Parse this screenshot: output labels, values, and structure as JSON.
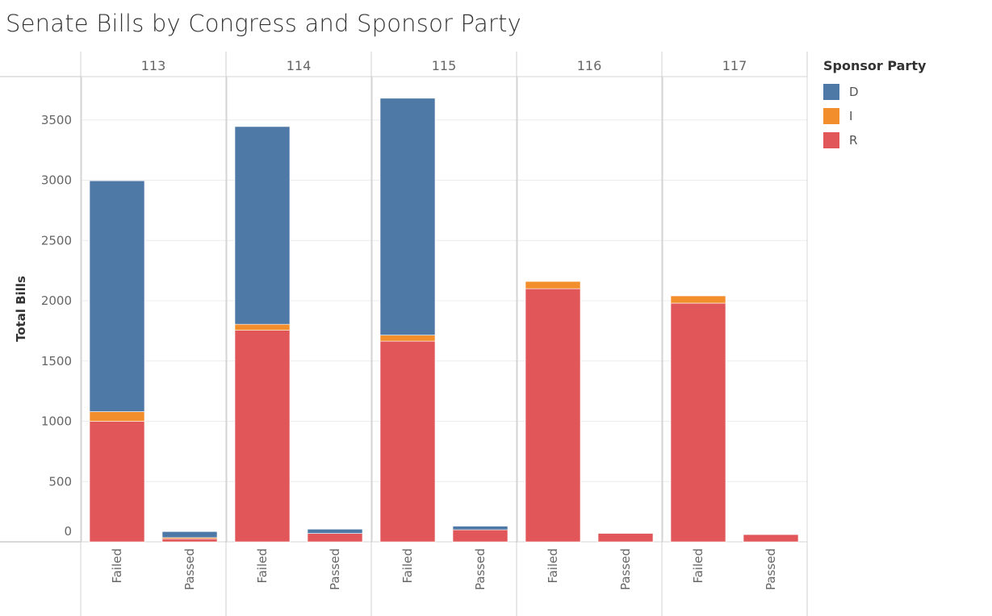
{
  "title": "Senate Bills by Congress and Sponsor Party",
  "chart_data": {
    "type": "bar",
    "stacked": true,
    "title": "Senate Bills by Congress and Sponsor Party",
    "ylabel": "Total Bills",
    "ylim": [
      0,
      3850
    ],
    "yticks": [
      0,
      500,
      1000,
      1500,
      2000,
      2500,
      3000,
      3500
    ],
    "grid": true,
    "legend_position": "right",
    "legend_title": "Sponsor Party",
    "panels": [
      {
        "congress": "113",
        "categories": [
          "Failed",
          "Passed"
        ],
        "series": [
          {
            "name": "R",
            "values": [
              1000,
              25
            ]
          },
          {
            "name": "I",
            "values": [
              80,
              10
            ]
          },
          {
            "name": "D",
            "values": [
              1915,
              50
            ]
          }
        ]
      },
      {
        "congress": "114",
        "categories": [
          "Failed",
          "Passed"
        ],
        "series": [
          {
            "name": "R",
            "values": [
              1755,
              70
            ]
          },
          {
            "name": "I",
            "values": [
              50,
              0
            ]
          },
          {
            "name": "D",
            "values": [
              1640,
              35
            ]
          }
        ]
      },
      {
        "congress": "115",
        "categories": [
          "Failed",
          "Passed"
        ],
        "series": [
          {
            "name": "R",
            "values": [
              1665,
              100
            ]
          },
          {
            "name": "I",
            "values": [
              50,
              0
            ]
          },
          {
            "name": "D",
            "values": [
              1965,
              30
            ]
          }
        ]
      },
      {
        "congress": "116",
        "categories": [
          "Failed",
          "Passed"
        ],
        "series": [
          {
            "name": "R",
            "values": [
              2100,
              70
            ]
          },
          {
            "name": "I",
            "values": [
              60,
              0
            ]
          },
          {
            "name": "D",
            "values": [
              0,
              0
            ]
          }
        ]
      },
      {
        "congress": "117",
        "categories": [
          "Failed",
          "Passed"
        ],
        "series": [
          {
            "name": "R",
            "values": [
              1980,
              60
            ]
          },
          {
            "name": "I",
            "values": [
              60,
              0
            ]
          },
          {
            "name": "D",
            "values": [
              0,
              0
            ]
          }
        ]
      }
    ]
  },
  "legend": {
    "title": "Sponsor Party",
    "items": [
      {
        "label": "D",
        "color": "#4e79a7"
      },
      {
        "label": "I",
        "color": "#f28e2b"
      },
      {
        "label": "R",
        "color": "#e15759"
      }
    ]
  },
  "colors": {
    "D": "#4e79a7",
    "I": "#f28e2b",
    "R": "#e15759"
  }
}
